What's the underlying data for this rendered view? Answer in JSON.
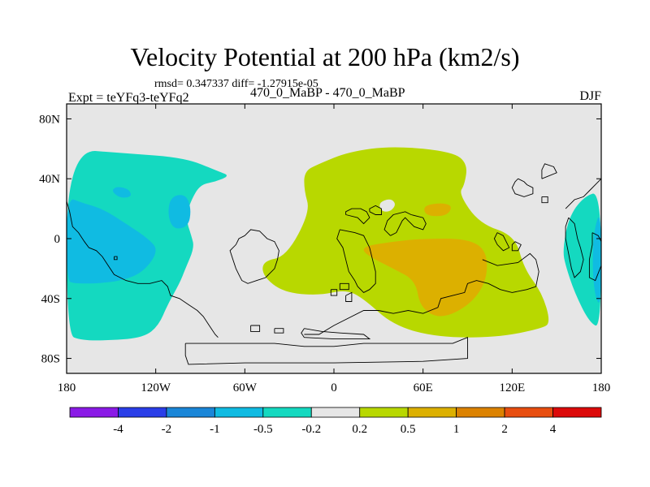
{
  "header": {
    "title": "Velocity Potential at 200 hPa (km2/s)",
    "stats": "rmsd= 0.347337 diff= -1.27915e-05",
    "experiment": "Expt = teYFq3-teYFq2",
    "runs": "470_0_MaBP - 470_0_MaBP",
    "season": "DJF"
  },
  "chart_data": {
    "type": "filled-contour-map",
    "title": "Velocity Potential at 200 hPa (km2/s)",
    "variable": "velocity potential difference",
    "units": "km2/s",
    "level_hPa": 200,
    "season": "DJF",
    "rmsd": 0.347337,
    "diff": -1.27915e-05,
    "xlim": [
      -180,
      180
    ],
    "ylim": [
      -90,
      90
    ],
    "x_ticks": [
      {
        "value": -180,
        "label": "180"
      },
      {
        "value": -120,
        "label": "120W"
      },
      {
        "value": -60,
        "label": "60W"
      },
      {
        "value": 0,
        "label": "0"
      },
      {
        "value": 60,
        "label": "60E"
      },
      {
        "value": 120,
        "label": "120E"
      },
      {
        "value": 180,
        "label": "180"
      }
    ],
    "y_ticks": [
      {
        "value": 80,
        "label": "80N"
      },
      {
        "value": 40,
        "label": "40N"
      },
      {
        "value": 0,
        "label": "0"
      },
      {
        "value": -40,
        "label": "40S"
      },
      {
        "value": -80,
        "label": "80S"
      }
    ],
    "colorbar": {
      "levels": [
        "-4",
        "-2",
        "-1",
        "-0.5",
        "-0.2",
        "0.2",
        "0.5",
        "1",
        "2",
        "4"
      ],
      "colors": [
        "#8a1ae6",
        "#2a3ee8",
        "#1a86d8",
        "#10bbe2",
        "#14d9c0",
        "#e6e6e6",
        "#b8d800",
        "#dcb000",
        "#dc8200",
        "#e84e10",
        "#dc0a0a"
      ]
    },
    "regions": [
      {
        "name": "pacific-west-americas",
        "category": "-0.5 to -0.2",
        "color": "#14d9c0",
        "outline": [
          [
            -180,
            60
          ],
          [
            -140,
            57
          ],
          [
            -100,
            54
          ],
          [
            -78,
            45
          ],
          [
            -70,
            42
          ],
          [
            -80,
            38
          ],
          [
            -90,
            36
          ],
          [
            -96,
            26
          ],
          [
            -100,
            14
          ],
          [
            -96,
            2
          ],
          [
            -94,
            -6
          ],
          [
            -100,
            -20
          ],
          [
            -104,
            -30
          ],
          [
            -112,
            -44
          ],
          [
            -118,
            -58
          ],
          [
            -128,
            -66
          ],
          [
            -150,
            -68
          ],
          [
            -170,
            -68
          ],
          [
            -180,
            -64
          ]
        ]
      },
      {
        "name": "east-pacific-minimum",
        "category": "-1 to -0.5",
        "color": "#10bbe2",
        "outline": [
          [
            -180,
            28
          ],
          [
            -170,
            24
          ],
          [
            -156,
            20
          ],
          [
            -140,
            10
          ],
          [
            -125,
            0
          ],
          [
            -118,
            -8
          ],
          [
            -128,
            -22
          ],
          [
            -142,
            -28
          ],
          [
            -160,
            -30
          ],
          [
            -175,
            -30
          ],
          [
            -180,
            -28
          ]
        ]
      },
      {
        "name": "pacific-cell-small",
        "category": "-1 to -0.5",
        "color": "#10bbe2",
        "outline": [
          [
            -150,
            32
          ],
          [
            -146,
            35
          ],
          [
            -138,
            33
          ],
          [
            -136,
            28
          ],
          [
            -144,
            27
          ]
        ]
      },
      {
        "name": "americas-cell",
        "category": "-1 to -0.5",
        "color": "#10bbe2",
        "outline": [
          [
            -110,
            28
          ],
          [
            -100,
            30
          ],
          [
            -96,
            20
          ],
          [
            -98,
            8
          ],
          [
            -108,
            6
          ],
          [
            -112,
            16
          ]
        ]
      },
      {
        "name": "africa-eurasia-positive",
        "category": "0.2 to 0.5",
        "color": "#b8d800",
        "outline": [
          [
            -10,
            50
          ],
          [
            10,
            58
          ],
          [
            40,
            62
          ],
          [
            80,
            58
          ],
          [
            90,
            50
          ],
          [
            88,
            36
          ],
          [
            84,
            30
          ],
          [
            98,
            10
          ],
          [
            122,
            2
          ],
          [
            128,
            -20
          ],
          [
            140,
            -36
          ],
          [
            146,
            -56
          ],
          [
            140,
            -60
          ],
          [
            110,
            -66
          ],
          [
            70,
            -66
          ],
          [
            40,
            -58
          ],
          [
            20,
            -40
          ],
          [
            8,
            -34
          ],
          [
            -10,
            -38
          ],
          [
            -34,
            -36
          ],
          [
            -48,
            -25
          ],
          [
            -48,
            -15
          ],
          [
            -32,
            -12
          ],
          [
            -16,
            18
          ],
          [
            -20,
            32
          ],
          [
            -20,
            45
          ]
        ]
      },
      {
        "name": "north-hole",
        "category": "-0.2 to 0.2",
        "color": "#e6e6e6",
        "outline": [
          [
            30,
            24
          ],
          [
            38,
            27
          ],
          [
            42,
            23
          ],
          [
            38,
            18
          ],
          [
            32,
            18
          ]
        ]
      },
      {
        "name": "maritime-maximum",
        "category": "0.5 to 1",
        "color": "#dcb000",
        "outline": [
          [
            20,
            -5
          ],
          [
            40,
            -2
          ],
          [
            60,
            0
          ],
          [
            90,
            0
          ],
          [
            103,
            -8
          ],
          [
            103,
            -28
          ],
          [
            92,
            -44
          ],
          [
            72,
            -54
          ],
          [
            58,
            -46
          ],
          [
            55,
            -28
          ],
          [
            40,
            -20
          ],
          [
            20,
            -10
          ]
        ]
      },
      {
        "name": "north-cell",
        "category": "0.5 to 1",
        "color": "#dcb000",
        "outline": [
          [
            60,
            22
          ],
          [
            72,
            24
          ],
          [
            80,
            22
          ],
          [
            76,
            15
          ],
          [
            62,
            15
          ]
        ]
      },
      {
        "name": "east-pacific-negative",
        "category": "-0.5 to -0.2",
        "color": "#14d9c0",
        "outline": [
          [
            180,
            32
          ],
          [
            168,
            28
          ],
          [
            158,
            14
          ],
          [
            154,
            -8
          ],
          [
            156,
            -18
          ],
          [
            162,
            -36
          ],
          [
            172,
            -56
          ],
          [
            180,
            -60
          ]
        ]
      },
      {
        "name": "east-edge-minimum",
        "category": "-1 to -0.5",
        "color": "#10bbe2",
        "outline": [
          [
            180,
            20
          ],
          [
            175,
            6
          ],
          [
            174,
            -20
          ],
          [
            176,
            -40
          ],
          [
            180,
            -45
          ]
        ]
      }
    ]
  }
}
